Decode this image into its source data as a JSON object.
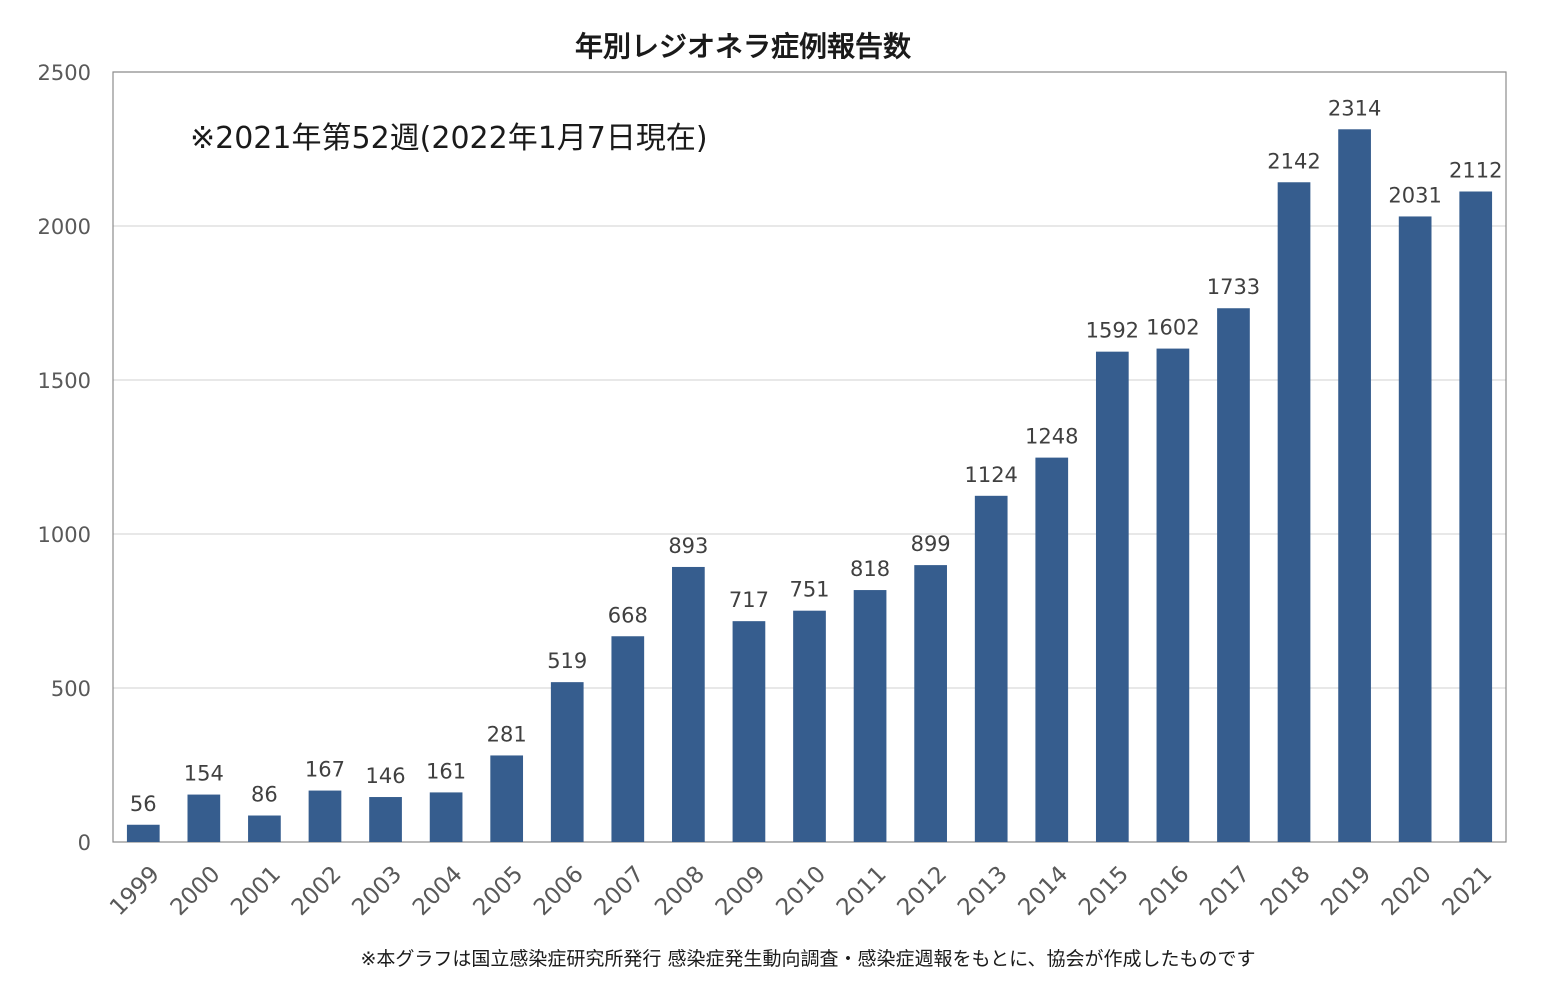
{
  "colors": {
    "bar": "#365d8e",
    "grid": "#d9d9d9",
    "axis": "#8c8c8c",
    "background": "#ffffff"
  },
  "chart_data": {
    "type": "bar",
    "title": "年別レジオネラ症例報告数",
    "annotation": "※2021年第52週(2022年1月7日現在)",
    "source_note": "※本グラフは国立感染症研究所発行 感染症発生動向調査・感染症週報をもとに、協会が作成したものです",
    "categories": [
      "1999",
      "2000",
      "2001",
      "2002",
      "2003",
      "2004",
      "2005",
      "2006",
      "2007",
      "2008",
      "2009",
      "2010",
      "2011",
      "2012",
      "2013",
      "2014",
      "2015",
      "2016",
      "2017",
      "2018",
      "2019",
      "2020",
      "2021"
    ],
    "values": [
      56,
      154,
      86,
      167,
      146,
      161,
      281,
      519,
      668,
      893,
      717,
      751,
      818,
      899,
      1124,
      1248,
      1592,
      1602,
      1733,
      2142,
      2314,
      2031,
      2112
    ],
    "ylim": [
      0,
      2500
    ],
    "yticks": [
      0,
      500,
      1000,
      1500,
      2000,
      2500
    ],
    "grid": true,
    "legend": "none",
    "data_labels": true
  }
}
